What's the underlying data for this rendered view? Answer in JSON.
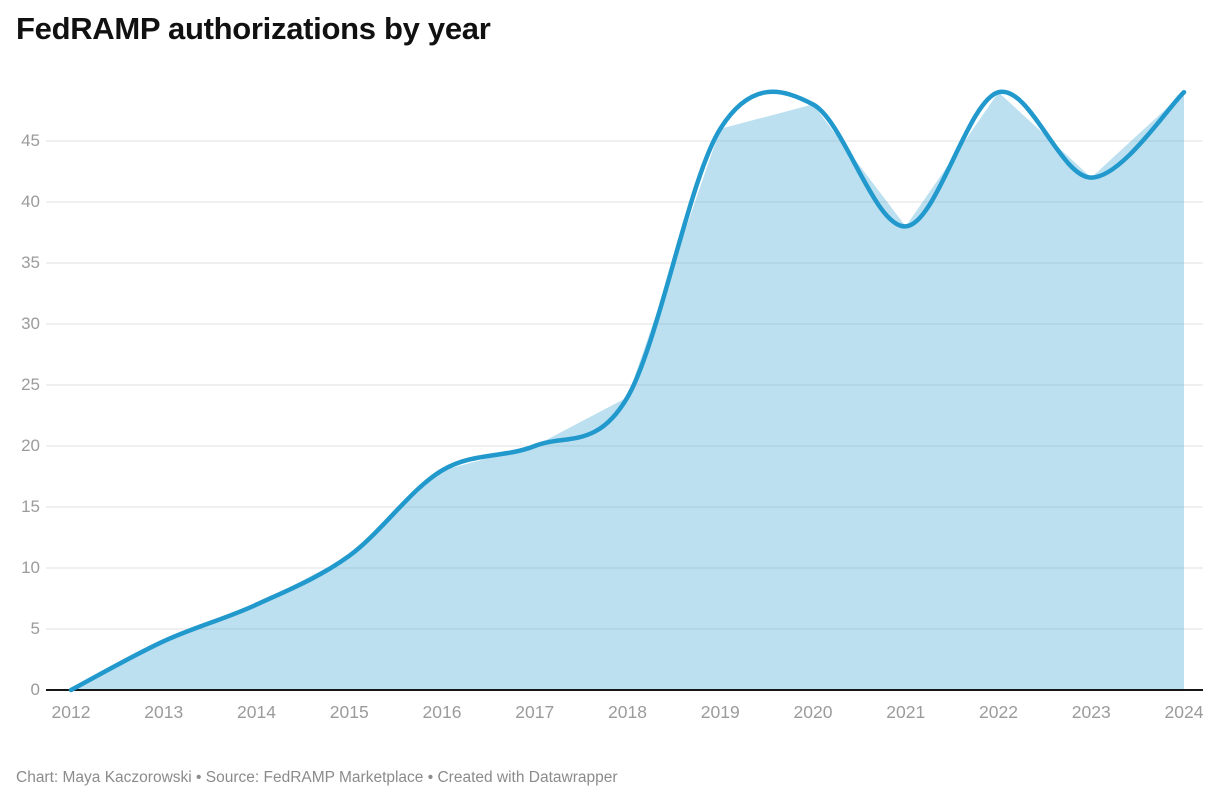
{
  "title": "FedRAMP authorizations by year",
  "footer": {
    "text": "Chart: Maya Kaczorowski • Source: FedRAMP Marketplace • Created with Datawrapper"
  },
  "chart_data": {
    "type": "area",
    "title": "FedRAMP authorizations by year",
    "x": [
      2012,
      2013,
      2014,
      2015,
      2016,
      2017,
      2018,
      2019,
      2020,
      2021,
      2022,
      2023,
      2024
    ],
    "series": [
      {
        "name": "FedRAMP authorizations",
        "values": [
          0,
          4,
          7,
          11,
          18,
          20,
          24,
          46,
          48,
          38,
          49,
          42,
          49
        ]
      }
    ],
    "xlabel": "",
    "ylabel": "",
    "ylim": [
      0,
      49
    ],
    "y_ticks": [
      0,
      5,
      10,
      15,
      20,
      25,
      30,
      35,
      40,
      45
    ],
    "x_tick_labels": [
      "2012",
      "2013",
      "2014",
      "2015",
      "2016",
      "2017",
      "2018",
      "2019",
      "2020",
      "2021",
      "2022",
      "2023",
      "2024"
    ],
    "grid": "horizontal",
    "legend": "none",
    "line_color": "#2299cd",
    "fill_color": "#2299cd",
    "fill_opacity": 0.3,
    "line_interpolation": "catmull-rom (overshooting spline)",
    "area_interpolation": "linear"
  }
}
